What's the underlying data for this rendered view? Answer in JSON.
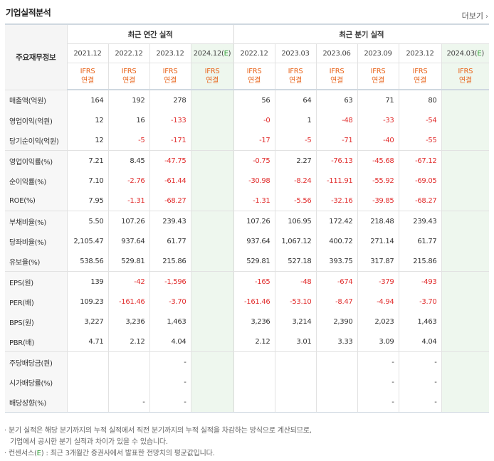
{
  "title": "기업실적분석",
  "more_label": "더보기",
  "more_icon": "chevron-right-icon",
  "row_header": "주요재무정보",
  "annual_group_label": "최근 연간 실적",
  "quarter_group_label": "최근 분기 실적",
  "annual_periods": [
    "2021.12",
    "2022.12",
    "2023.12",
    "2024.12(E)"
  ],
  "quarter_periods": [
    "2022.12",
    "2023.03",
    "2023.06",
    "2023.09",
    "2023.12",
    "2024.03(E)"
  ],
  "standard_line1": "IFRS",
  "standard_line2": "연결",
  "rows": [
    {
      "label": "매출액(억원)",
      "annual": [
        "164",
        "192",
        "278",
        ""
      ],
      "quarter": [
        "56",
        "64",
        "63",
        "71",
        "80",
        ""
      ]
    },
    {
      "label": "영업이익(억원)",
      "annual": [
        "12",
        "16",
        "-133",
        ""
      ],
      "quarter": [
        "-0",
        "1",
        "-48",
        "-33",
        "-54",
        ""
      ]
    },
    {
      "label": "당기순이익(억원)",
      "annual": [
        "12",
        "-5",
        "-171",
        ""
      ],
      "quarter": [
        "-17",
        "-5",
        "-71",
        "-40",
        "-55",
        ""
      ]
    },
    {
      "label": "영업이익률(%)",
      "annual": [
        "7.21",
        "8.45",
        "-47.75",
        ""
      ],
      "quarter": [
        "-0.75",
        "2.27",
        "-76.13",
        "-45.68",
        "-67.12",
        ""
      ]
    },
    {
      "label": "순이익률(%)",
      "annual": [
        "7.10",
        "-2.76",
        "-61.44",
        ""
      ],
      "quarter": [
        "-30.98",
        "-8.24",
        "-111.91",
        "-55.92",
        "-69.05",
        ""
      ]
    },
    {
      "label": "ROE(%)",
      "annual": [
        "7.95",
        "-1.31",
        "-68.27",
        ""
      ],
      "quarter": [
        "-1.31",
        "-5.56",
        "-32.16",
        "-39.85",
        "-68.27",
        ""
      ]
    },
    {
      "label": "부채비율(%)",
      "annual": [
        "5.50",
        "107.26",
        "239.43",
        ""
      ],
      "quarter": [
        "107.26",
        "106.95",
        "172.42",
        "218.48",
        "239.43",
        ""
      ]
    },
    {
      "label": "당좌비율(%)",
      "annual": [
        "2,105.47",
        "937.64",
        "61.77",
        ""
      ],
      "quarter": [
        "937.64",
        "1,067.12",
        "400.72",
        "271.14",
        "61.77",
        ""
      ]
    },
    {
      "label": "유보율(%)",
      "annual": [
        "538.56",
        "529.81",
        "215.86",
        ""
      ],
      "quarter": [
        "529.81",
        "527.18",
        "393.75",
        "317.87",
        "215.86",
        ""
      ]
    },
    {
      "label": "EPS(원)",
      "annual": [
        "139",
        "-42",
        "-1,596",
        ""
      ],
      "quarter": [
        "-165",
        "-48",
        "-674",
        "-379",
        "-493",
        ""
      ]
    },
    {
      "label": "PER(배)",
      "annual": [
        "109.23",
        "-161.46",
        "-3.70",
        ""
      ],
      "quarter": [
        "-161.46",
        "-53.10",
        "-8.47",
        "-4.94",
        "-3.70",
        ""
      ]
    },
    {
      "label": "BPS(원)",
      "annual": [
        "3,227",
        "3,236",
        "1,463",
        ""
      ],
      "quarter": [
        "3,236",
        "3,214",
        "2,390",
        "2,023",
        "1,463",
        ""
      ]
    },
    {
      "label": "PBR(배)",
      "annual": [
        "4.71",
        "2.12",
        "4.04",
        ""
      ],
      "quarter": [
        "2.12",
        "3.01",
        "3.33",
        "3.09",
        "4.04",
        ""
      ]
    },
    {
      "label": "주당배당금(원)",
      "annual": [
        "",
        "",
        "-",
        ""
      ],
      "quarter": [
        "",
        "",
        "",
        "-",
        "-",
        ""
      ]
    },
    {
      "label": "시가배당률(%)",
      "annual": [
        "",
        "",
        "-",
        ""
      ],
      "quarter": [
        "",
        "",
        "",
        "-",
        "-",
        ""
      ]
    },
    {
      "label": "배당성향(%)",
      "annual": [
        "",
        "-",
        "-",
        ""
      ],
      "quarter": [
        "",
        "",
        "",
        "-",
        "-",
        ""
      ]
    }
  ],
  "note1": "분기 실적은 해당 분기까지의 누적 실적에서 직전 분기까지의 누적 실적을 차감하는 방식으로 계산되므로,",
  "note1b": "기업에서 공시한 분기 실적과 차이가 있을 수 있습니다.",
  "note2_prefix": "컨센서스(",
  "note2_e": "E",
  "note2_suffix": ") : 최근 3개월간 증권사에서 발표한 전망치의 평균값입니다.",
  "colors": {
    "accent_orange": "#e8641b",
    "negative_red": "#e12d2d",
    "estimate_bg": "#eef7ee",
    "estimate_green": "#2d9e35"
  }
}
